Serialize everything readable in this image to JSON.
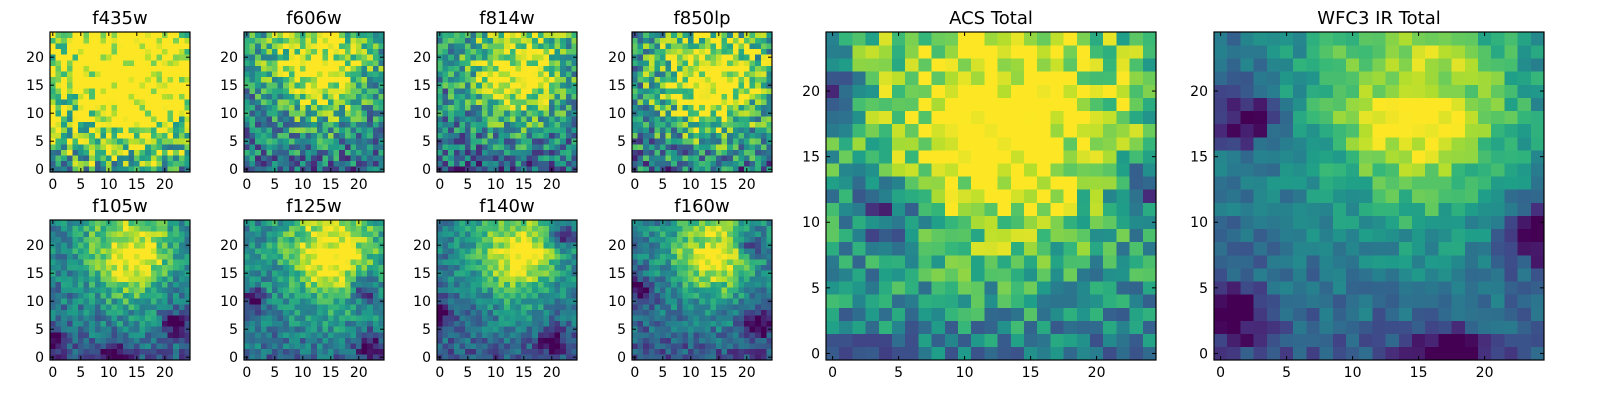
{
  "figure": {
    "title": ""
  },
  "chart_data": [
    {
      "type": "heatmap",
      "title": "f435w",
      "x_ticks": [
        "0",
        "5",
        "10",
        "15",
        "20"
      ],
      "y_ticks": [
        "0",
        "5",
        "10",
        "15",
        "20"
      ],
      "xlim": [
        -0.5,
        24.5
      ],
      "ylim": [
        -0.5,
        24.5
      ],
      "grid_size": 25,
      "colormap": "viridis",
      "peak": [
        14,
        19
      ],
      "peak_width": 11,
      "noise": 0.38,
      "base": 0.62,
      "seed": 11,
      "edges": []
    },
    {
      "type": "heatmap",
      "title": "f606w",
      "x_ticks": [
        "0",
        "5",
        "10",
        "15",
        "20"
      ],
      "y_ticks": [
        "0",
        "5",
        "10",
        "15",
        "20"
      ],
      "xlim": [
        -0.5,
        24.5
      ],
      "ylim": [
        -0.5,
        24.5
      ],
      "grid_size": 25,
      "colormap": "viridis",
      "peak": [
        13,
        20
      ],
      "peak_width": 7,
      "noise": 0.3,
      "base": 0.45,
      "seed": 23,
      "edges": []
    },
    {
      "type": "heatmap",
      "title": "f814w",
      "x_ticks": [
        "0",
        "5",
        "10",
        "15",
        "20"
      ],
      "y_ticks": [
        "0",
        "5",
        "10",
        "15",
        "20"
      ],
      "xlim": [
        -0.5,
        24.5
      ],
      "ylim": [
        -0.5,
        24.5
      ],
      "grid_size": 25,
      "colormap": "viridis",
      "peak": [
        14,
        19
      ],
      "peak_width": 7,
      "noise": 0.3,
      "base": 0.42,
      "seed": 37,
      "edges": []
    },
    {
      "type": "heatmap",
      "title": "f850lp",
      "x_ticks": [
        "0",
        "5",
        "10",
        "15",
        "20"
      ],
      "y_ticks": [
        "0",
        "5",
        "10",
        "15",
        "20"
      ],
      "xlim": [
        -0.5,
        24.5
      ],
      "ylim": [
        -0.5,
        24.5
      ],
      "grid_size": 25,
      "colormap": "viridis",
      "peak": [
        14,
        17
      ],
      "peak_width": 7,
      "noise": 0.34,
      "base": 0.48,
      "seed": 41,
      "edges": []
    },
    {
      "type": "heatmap",
      "title": "f105w",
      "x_ticks": [
        "0",
        "5",
        "10",
        "15",
        "20"
      ],
      "y_ticks": [
        "0",
        "5",
        "10",
        "15",
        "20"
      ],
      "xlim": [
        -0.5,
        24.5
      ],
      "ylim": [
        -0.5,
        24.5
      ],
      "grid_size": 25,
      "colormap": "viridis",
      "peak": [
        14,
        20
      ],
      "peak_width": 6,
      "noise": 0.18,
      "base": 0.4,
      "seed": 53,
      "edges": [
        [
          0,
          3
        ],
        [
          11,
          0
        ],
        [
          22,
          6
        ]
      ]
    },
    {
      "type": "heatmap",
      "title": "f125w",
      "x_ticks": [
        "0",
        "5",
        "10",
        "15",
        "20"
      ],
      "y_ticks": [
        "0",
        "5",
        "10",
        "15",
        "20"
      ],
      "xlim": [
        -0.5,
        24.5
      ],
      "ylim": [
        -0.5,
        24.5
      ],
      "grid_size": 25,
      "colormap": "viridis",
      "peak": [
        15,
        20
      ],
      "peak_width": 6,
      "noise": 0.18,
      "base": 0.45,
      "seed": 61,
      "edges": [
        [
          1,
          10
        ],
        [
          22,
          2
        ],
        [
          21,
          12
        ]
      ]
    },
    {
      "type": "heatmap",
      "title": "f140w",
      "x_ticks": [
        "0",
        "5",
        "10",
        "15",
        "20"
      ],
      "y_ticks": [
        "0",
        "5",
        "10",
        "15",
        "20"
      ],
      "xlim": [
        -0.5,
        24.5
      ],
      "ylim": [
        -0.5,
        24.5
      ],
      "grid_size": 25,
      "colormap": "viridis",
      "peak": [
        14,
        20
      ],
      "peak_width": 6,
      "noise": 0.16,
      "base": 0.38,
      "seed": 71,
      "edges": [
        [
          0,
          8
        ],
        [
          20,
          3
        ],
        [
          22,
          22
        ]
      ]
    },
    {
      "type": "heatmap",
      "title": "f160w",
      "x_ticks": [
        "0",
        "5",
        "10",
        "15",
        "20"
      ],
      "y_ticks": [
        "0",
        "5",
        "10",
        "15",
        "20"
      ],
      "xlim": [
        -0.5,
        24.5
      ],
      "ylim": [
        -0.5,
        24.5
      ],
      "grid_size": 25,
      "colormap": "viridis",
      "peak": [
        14,
        20
      ],
      "peak_width": 6,
      "noise": 0.17,
      "base": 0.36,
      "seed": 83,
      "edges": [
        [
          1,
          12
        ],
        [
          22,
          6
        ],
        [
          21,
          20
        ]
      ]
    },
    {
      "type": "heatmap",
      "title": "ACS Total",
      "x_ticks": [
        "0",
        "5",
        "10",
        "15",
        "20"
      ],
      "y_ticks": [
        "0",
        "5",
        "10",
        "15",
        "20"
      ],
      "xlim": [
        -0.5,
        24.5
      ],
      "ylim": [
        -0.5,
        24.5
      ],
      "grid_size": 25,
      "colormap": "viridis",
      "peak": [
        13,
        20
      ],
      "peak_width": 8,
      "noise": 0.22,
      "base": 0.5,
      "seed": 97,
      "edges": [
        [
          0,
          20
        ],
        [
          4,
          11
        ],
        [
          24,
          13
        ]
      ]
    },
    {
      "type": "heatmap",
      "title": "WFC3 IR Total",
      "x_ticks": [
        "0",
        "5",
        "10",
        "15",
        "20"
      ],
      "y_ticks": [
        "0",
        "5",
        "10",
        "15",
        "20"
      ],
      "xlim": [
        -0.5,
        24.5
      ],
      "ylim": [
        -0.5,
        24.5
      ],
      "grid_size": 25,
      "colormap": "viridis",
      "peak": [
        15,
        20
      ],
      "peak_width": 6,
      "noise": 0.12,
      "base": 0.38,
      "seed": 101,
      "edges": [
        [
          1,
          3
        ],
        [
          2,
          18
        ],
        [
          17,
          0
        ],
        [
          24,
          9
        ]
      ]
    }
  ]
}
